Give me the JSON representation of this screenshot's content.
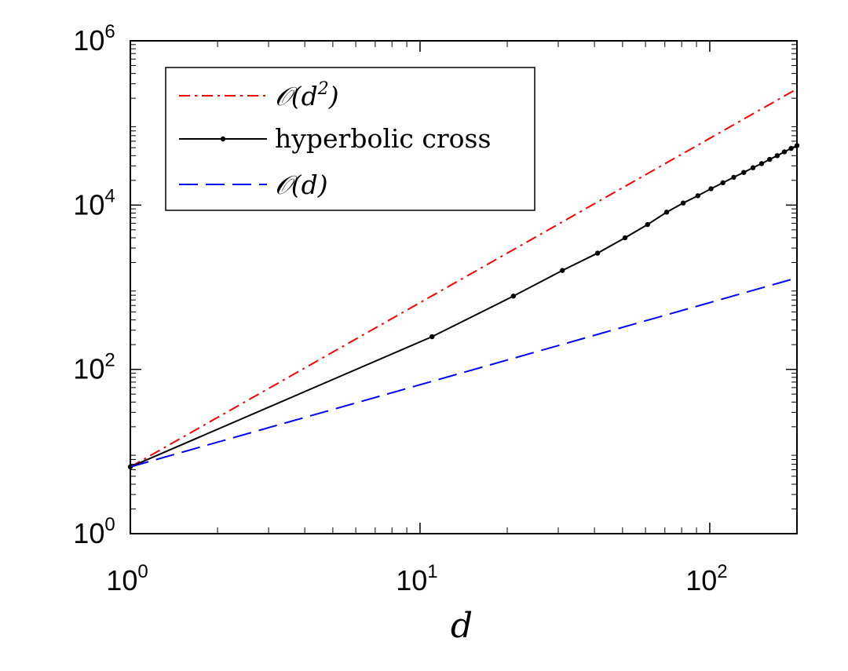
{
  "chart_data": {
    "type": "line",
    "title": "",
    "xlabel": "d",
    "ylabel": "",
    "xscale": "log",
    "yscale": "log",
    "xlim": [
      1,
      200
    ],
    "ylim": [
      1,
      1000000
    ],
    "grid": false,
    "legend_position": "top-left",
    "x_ticks": [
      {
        "base": "10",
        "exp": "0",
        "value": 1
      },
      {
        "base": "10",
        "exp": "1",
        "value": 10
      },
      {
        "base": "10",
        "exp": "2",
        "value": 100
      }
    ],
    "y_ticks": [
      {
        "base": "10",
        "exp": "0",
        "value": 1
      },
      {
        "base": "10",
        "exp": "2",
        "value": 100
      },
      {
        "base": "10",
        "exp": "4",
        "value": 10000
      },
      {
        "base": "10",
        "exp": "6",
        "value": 1000000
      }
    ],
    "series": [
      {
        "legend_label": "O(d^2)",
        "legend_main": "𝒪(d",
        "legend_sup": "2",
        "legend_close": ")",
        "color": "#ff0000",
        "style": "dash-dot",
        "x": [
          1,
          200
        ],
        "y": [
          6.5,
          260000
        ]
      },
      {
        "legend_label": "hyperbolic cross",
        "color": "#000000",
        "style": "solid-dot",
        "x": [
          1,
          11,
          21,
          31,
          41,
          51,
          61,
          71,
          81,
          91,
          101,
          111,
          121,
          131,
          141,
          151,
          161,
          171,
          181,
          191,
          200
        ],
        "y": [
          6.5,
          250,
          780,
          1600,
          2600,
          4000,
          5800,
          8200,
          10600,
          13000,
          15800,
          18700,
          21800,
          25000,
          28500,
          32000,
          36000,
          40000,
          44500,
          49000,
          53000
        ]
      },
      {
        "legend_label": "O(d)",
        "legend_main": "𝒪(d)",
        "color": "#0000ff",
        "style": "dashed",
        "x": [
          1,
          200
        ],
        "y": [
          6.5,
          1300
        ]
      }
    ]
  }
}
